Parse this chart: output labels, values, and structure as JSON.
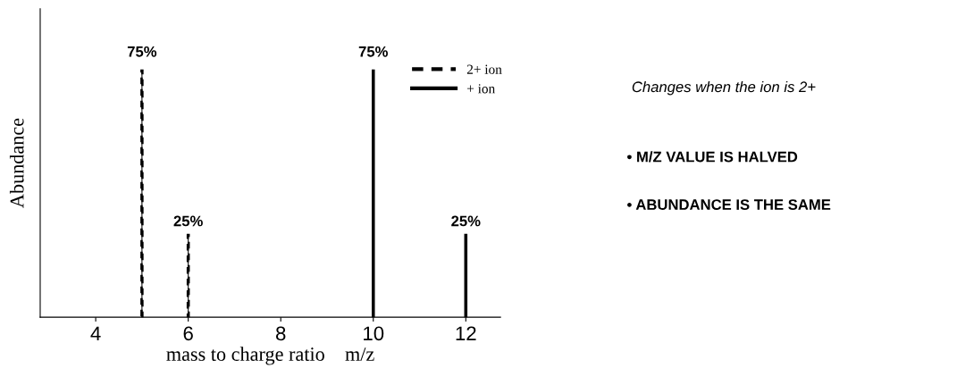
{
  "chart_data": {
    "type": "bar",
    "xlabel": "mass to charge ratio    m/z",
    "ylabel": "Abundance",
    "xlim": [
      2.8,
      12.75
    ],
    "xticks": [
      4,
      6,
      8,
      10,
      12
    ],
    "legend": "top right",
    "tick_labels": "x",
    "series": [
      {
        "name": "2+ ion",
        "color": "#000000",
        "line_style": "dashed",
        "x": [
          5,
          6
        ],
        "values": [
          75,
          25
        ],
        "value_labels": [
          "75%",
          "25%"
        ]
      },
      {
        "name": "+ ion",
        "color": "#000000",
        "line_style": "solid",
        "x": [
          10,
          12
        ],
        "values": [
          75,
          25
        ],
        "value_labels": [
          "75%",
          "25%"
        ]
      }
    ],
    "annotations": [
      "Changes when the ion is 2+",
      "• M/Z VALUE IS HALVED",
      "• ABUNDANCE IS THE SAME"
    ]
  }
}
